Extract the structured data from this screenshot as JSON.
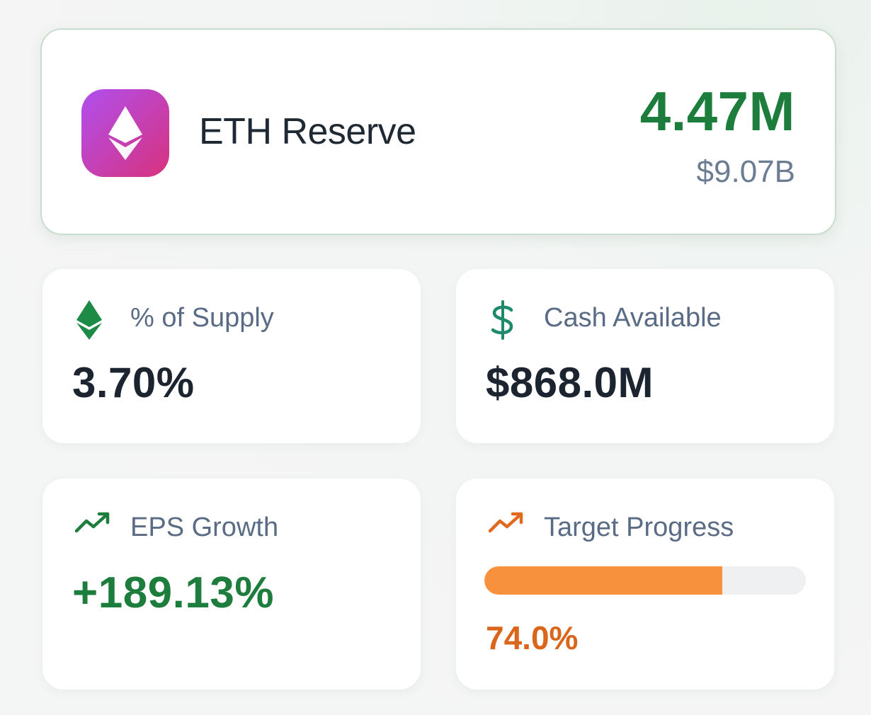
{
  "hero": {
    "title": "ETH Reserve",
    "amount": "4.47M",
    "usd_value": "$9.07B",
    "icon": "ethereum-icon",
    "accent_gradient": [
      "#b04ff0",
      "#d8327c"
    ]
  },
  "cards": {
    "supply": {
      "icon": "ethereum-icon",
      "label": "% of Supply",
      "value": "3.70%"
    },
    "cash": {
      "icon": "dollar-icon",
      "label": "Cash Available",
      "value": "$868.0M"
    },
    "eps": {
      "icon": "trending-up-icon",
      "label": "EPS Growth",
      "value": "+189.13%"
    },
    "target": {
      "icon": "trending-up-icon",
      "label": "Target Progress",
      "value": "74.0%",
      "progress_percent": 74.0
    }
  },
  "colors": {
    "positive": "#1d7d3c",
    "progress": "#f7913d",
    "progress_text": "#d9661b",
    "label": "#5a6b85"
  }
}
